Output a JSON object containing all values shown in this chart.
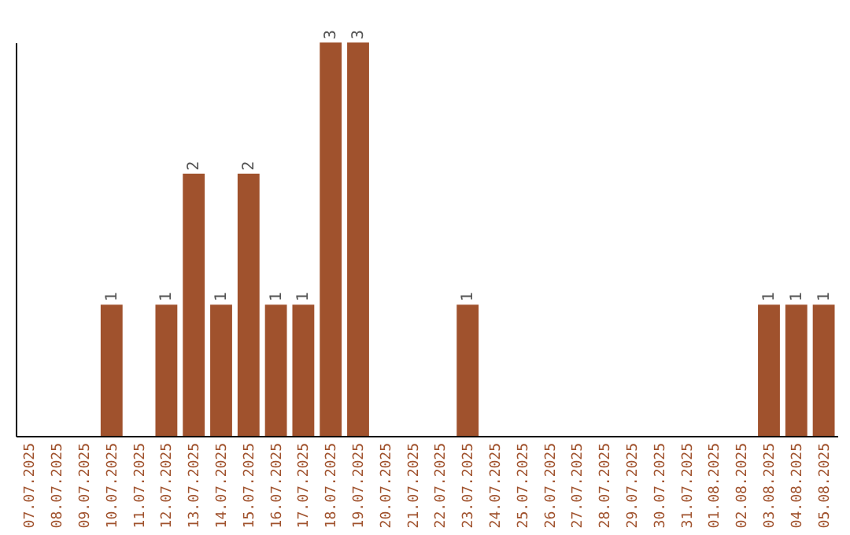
{
  "chart_data": {
    "type": "bar",
    "categories": [
      "07.07.2025",
      "08.07.2025",
      "09.07.2025",
      "10.07.2025",
      "11.07.2025",
      "12.07.2025",
      "13.07.2025",
      "14.07.2025",
      "15.07.2025",
      "16.07.2025",
      "17.07.2025",
      "18.07.2025",
      "19.07.2025",
      "20.07.2025",
      "21.07.2025",
      "22.07.2025",
      "23.07.2025",
      "24.07.2025",
      "25.07.2025",
      "26.07.2025",
      "27.07.2025",
      "28.07.2025",
      "29.07.2025",
      "30.07.2025",
      "31.07.2025",
      "01.08.2025",
      "02.08.2025",
      "03.08.2025",
      "04.08.2025",
      "05.08.2025"
    ],
    "values": [
      0,
      0,
      0,
      1,
      0,
      1,
      2,
      1,
      2,
      1,
      1,
      3,
      3,
      0,
      0,
      0,
      1,
      0,
      0,
      0,
      0,
      0,
      0,
      0,
      0,
      0,
      0,
      1,
      1,
      1
    ],
    "value_labels": [
      null,
      null,
      null,
      "1",
      null,
      "1",
      "2",
      "1",
      "2",
      "1",
      "1",
      "3",
      "3",
      null,
      null,
      null,
      "1",
      null,
      null,
      null,
      null,
      null,
      null,
      null,
      null,
      null,
      null,
      "1",
      "1",
      "1"
    ],
    "color": "#a0522d",
    "tick_labels": "x"
  }
}
